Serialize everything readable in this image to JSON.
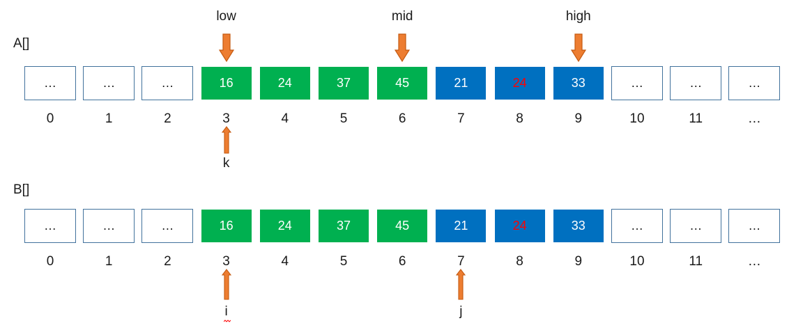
{
  "arrays": [
    {
      "label": "A[]",
      "cells": [
        {
          "value": "…",
          "style": "empty",
          "text_color": null
        },
        {
          "value": "…",
          "style": "empty",
          "text_color": null
        },
        {
          "value": "…",
          "style": "empty",
          "text_color": null
        },
        {
          "value": "16",
          "style": "green",
          "text_color": null
        },
        {
          "value": "24",
          "style": "green",
          "text_color": null
        },
        {
          "value": "37",
          "style": "green",
          "text_color": null
        },
        {
          "value": "45",
          "style": "green",
          "text_color": null
        },
        {
          "value": "21",
          "style": "blue",
          "text_color": null
        },
        {
          "value": "24",
          "style": "blue",
          "text_color": "#ff0000"
        },
        {
          "value": "33",
          "style": "blue",
          "text_color": null
        },
        {
          "value": "…",
          "style": "empty",
          "text_color": null
        },
        {
          "value": "…",
          "style": "empty",
          "text_color": null
        },
        {
          "value": "…",
          "style": "empty",
          "text_color": null
        }
      ],
      "indices": [
        "0",
        "1",
        "2",
        "3",
        "4",
        "5",
        "6",
        "7",
        "8",
        "9",
        "10",
        "11",
        "…"
      ],
      "pointers_above": [
        {
          "label": "low",
          "index": 3
        },
        {
          "label": "mid",
          "index": 6
        },
        {
          "label": "high",
          "index": 9
        }
      ],
      "pointers_below": [
        {
          "label": "k",
          "index": 3
        }
      ]
    },
    {
      "label": "B[]",
      "cells": [
        {
          "value": "…",
          "style": "empty",
          "text_color": null
        },
        {
          "value": "…",
          "style": "empty",
          "text_color": null
        },
        {
          "value": "…",
          "style": "empty",
          "text_color": null
        },
        {
          "value": "16",
          "style": "green",
          "text_color": null
        },
        {
          "value": "24",
          "style": "green",
          "text_color": null
        },
        {
          "value": "37",
          "style": "green",
          "text_color": null
        },
        {
          "value": "45",
          "style": "green",
          "text_color": null
        },
        {
          "value": "21",
          "style": "blue",
          "text_color": null
        },
        {
          "value": "24",
          "style": "blue",
          "text_color": "#ff0000"
        },
        {
          "value": "33",
          "style": "blue",
          "text_color": null
        },
        {
          "value": "…",
          "style": "empty",
          "text_color": null
        },
        {
          "value": "…",
          "style": "empty",
          "text_color": null
        },
        {
          "value": "…",
          "style": "empty",
          "text_color": null
        }
      ],
      "indices": [
        "0",
        "1",
        "2",
        "3",
        "4",
        "5",
        "6",
        "7",
        "8",
        "9",
        "10",
        "11",
        "…"
      ],
      "pointers_above": [],
      "pointers_below": [
        {
          "label": "i",
          "index": 3
        },
        {
          "label": "j",
          "index": 7
        }
      ]
    }
  ],
  "colors": {
    "green": "#00b050",
    "blue": "#0070c0",
    "empty_border": "#41719c",
    "arrow_fill": "#ed7d31",
    "arrow_stroke": "#c55a11",
    "highlight_text": "#ff0000"
  }
}
